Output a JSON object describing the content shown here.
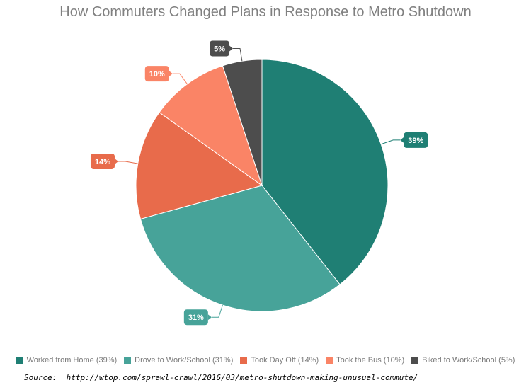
{
  "chart_data": {
    "type": "pie",
    "title": "How Commuters Changed Plans in Response to Metro Shutdown",
    "slices": [
      {
        "label": "Worked from Home",
        "legend": "Worked from Home (39%)",
        "value": 39,
        "data_label": "39%",
        "color": "#1f7f74"
      },
      {
        "label": "Drove to Work/School",
        "legend": "Drove to Work/School (31%)",
        "value": 31,
        "data_label": "31%",
        "color": "#47a399"
      },
      {
        "label": "Took Day Off",
        "legend": "Took Day Off (14%)",
        "value": 14,
        "data_label": "14%",
        "color": "#e86b4b"
      },
      {
        "label": "Took the Bus",
        "legend": "Took the Bus (10%)",
        "value": 10,
        "data_label": "10%",
        "color": "#fa8466"
      },
      {
        "label": "Biked to Work/School",
        "legend": "Biked to Work/School (5%)",
        "value": 5,
        "data_label": "5%",
        "color": "#4d4d4d"
      }
    ],
    "legend_position": "bottom"
  },
  "source": {
    "label": "Source:",
    "url": "http://wtop.com/sprawl-crawl/2016/03/metro-shutdown-making-unusual-commute/"
  }
}
